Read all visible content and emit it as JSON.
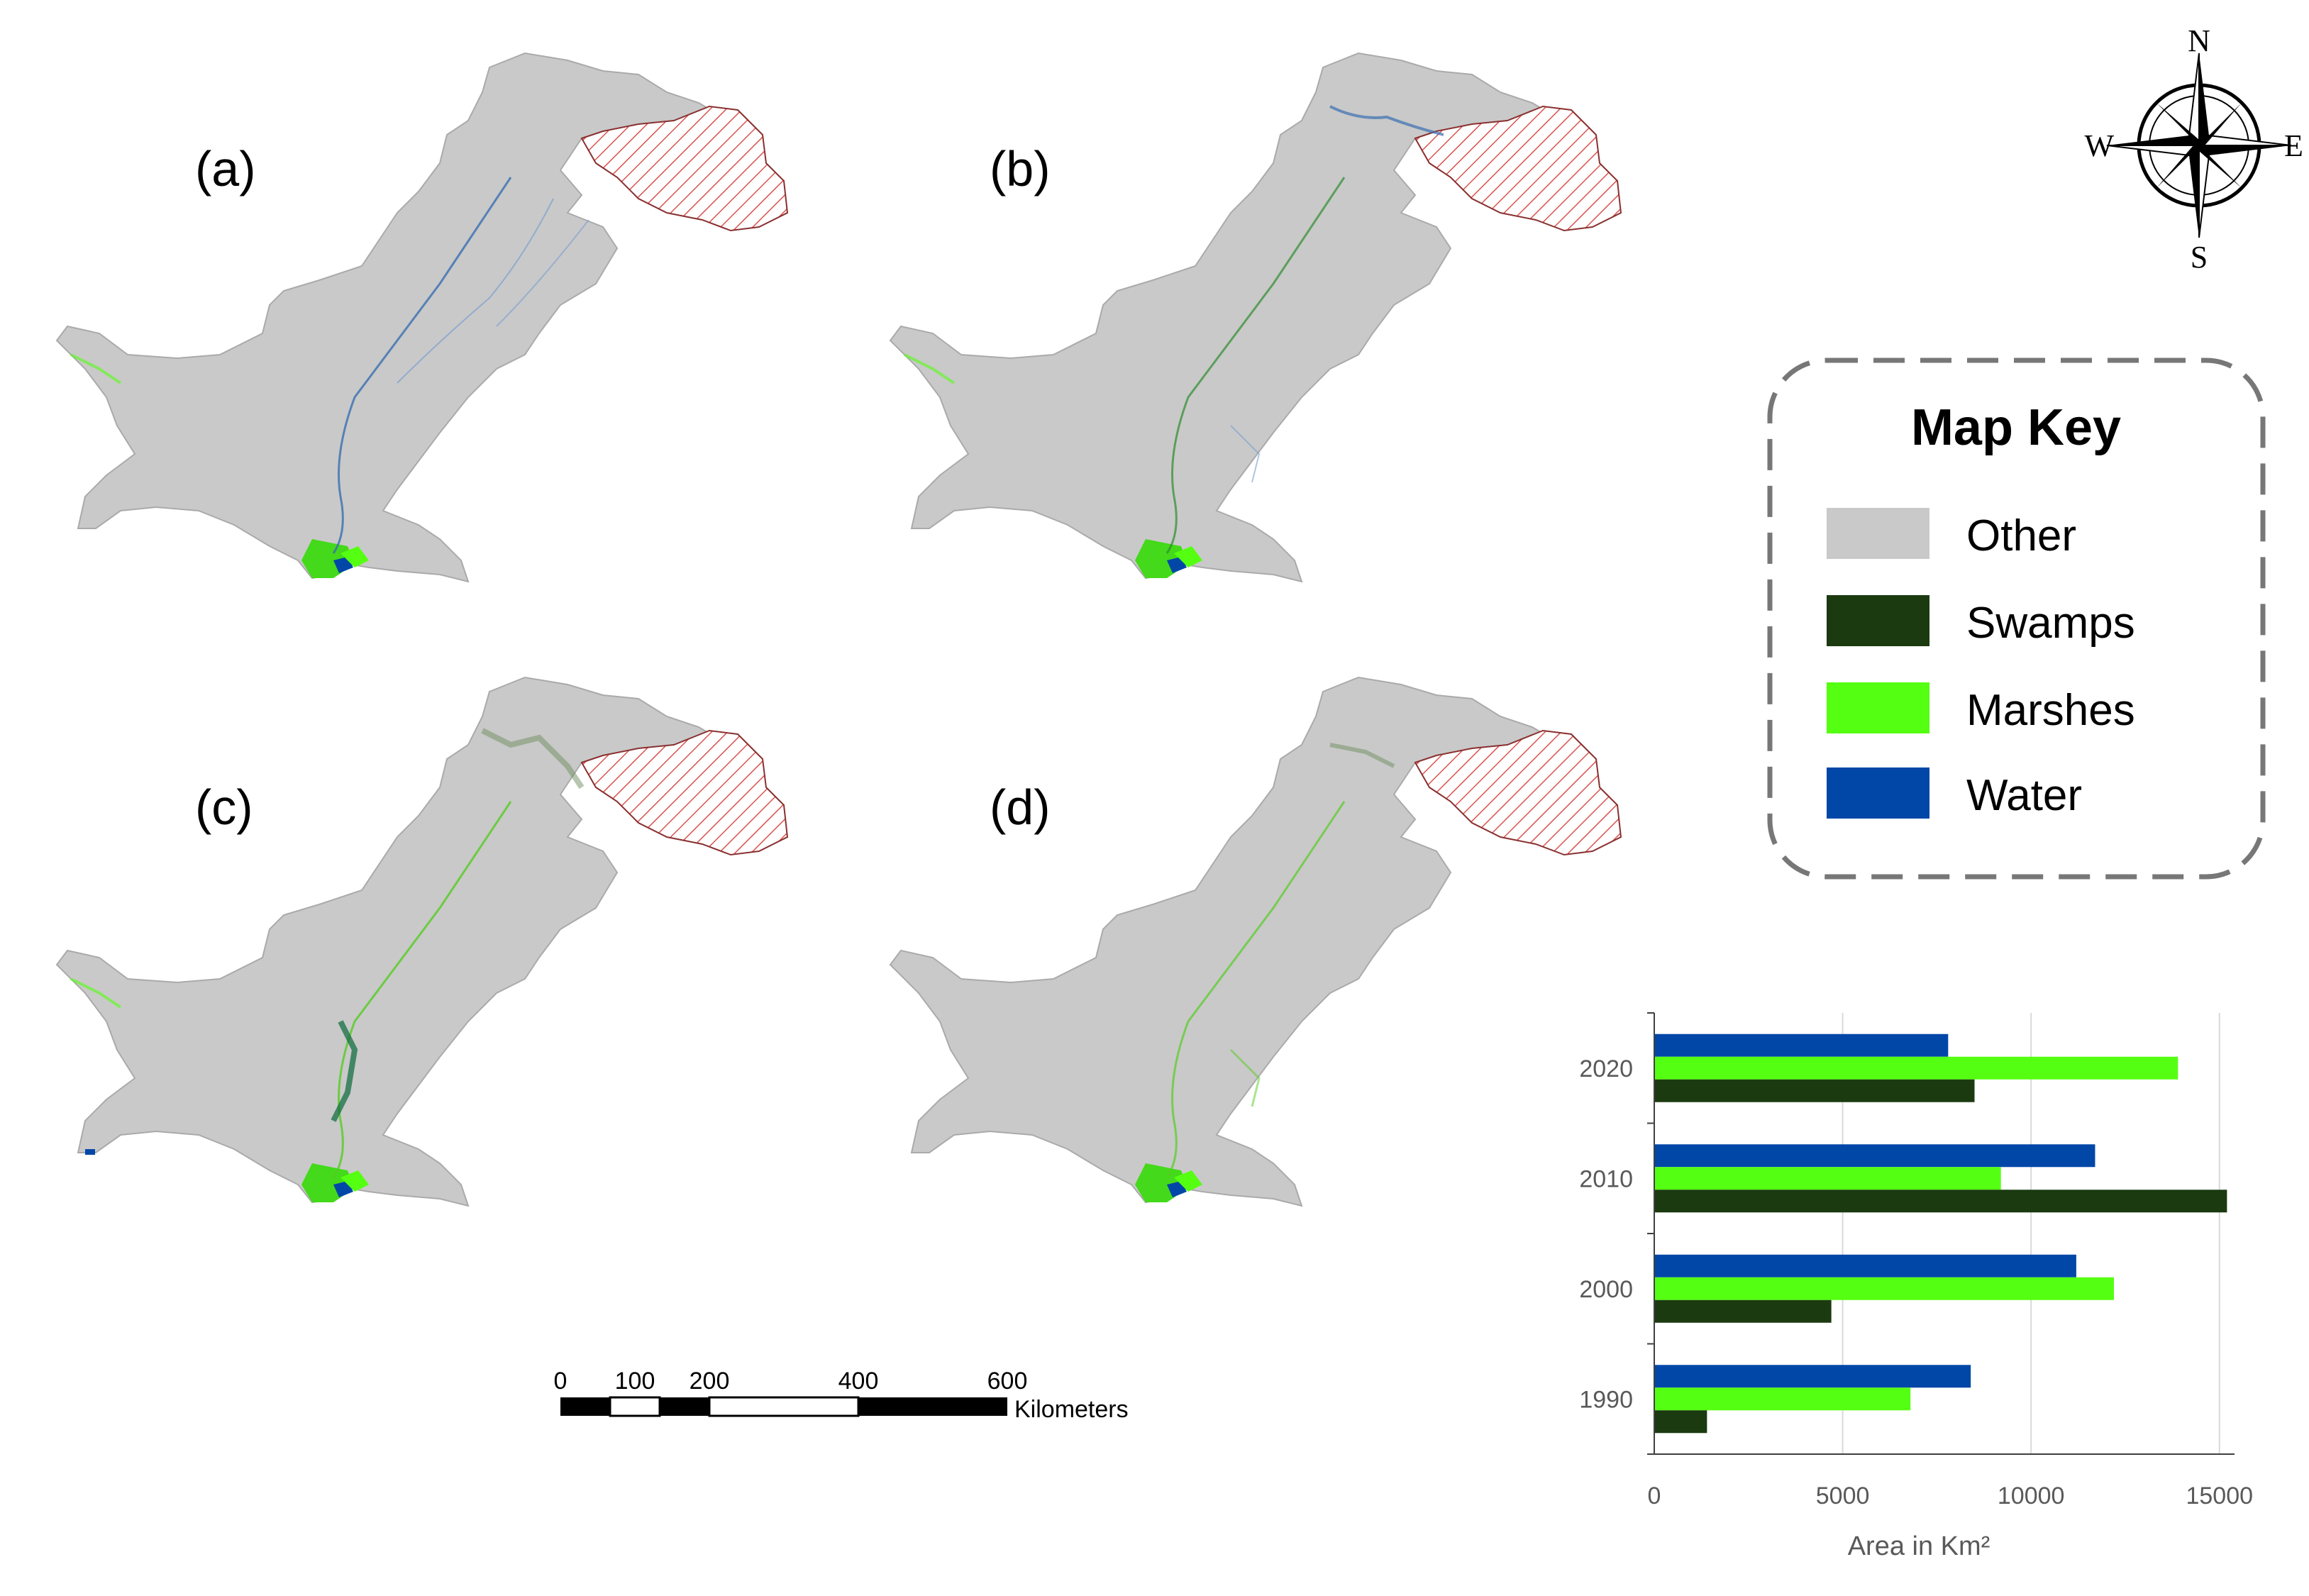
{
  "maps": {
    "panels": [
      {
        "label": "(a)"
      },
      {
        "label": "(b)"
      },
      {
        "label": "(c)"
      },
      {
        "label": "(d)"
      }
    ]
  },
  "compass": {
    "north": "N",
    "south": "S",
    "east": "E",
    "west": "W"
  },
  "scale_bar": {
    "ticks": [
      "0",
      "100",
      "200",
      "400",
      "600"
    ],
    "unit": "Kilometers"
  },
  "map_key": {
    "title": "Map Key",
    "items": [
      {
        "label": "Other",
        "color": "#c9c9c9"
      },
      {
        "label": "Swamps",
        "color": "#1b3a10"
      },
      {
        "label": "Marshes",
        "color": "#55ff11"
      },
      {
        "label": "Water",
        "color": "#0047a8"
      }
    ]
  },
  "chart_data": {
    "type": "bar",
    "orientation": "horizontal",
    "categories": [
      "1990",
      "2000",
      "2010",
      "2020"
    ],
    "series": [
      {
        "key": "water",
        "color": "#0047a8",
        "values": [
          8400,
          11200,
          11700,
          7800
        ]
      },
      {
        "key": "marshes",
        "color": "#55ff11",
        "values": [
          6800,
          12200,
          9200,
          13900
        ]
      },
      {
        "key": "swamps",
        "color": "#1b3a10",
        "values": [
          1400,
          4700,
          15200,
          8500
        ]
      }
    ],
    "x_ticks": [
      "0",
      "5000",
      "10000",
      "15000"
    ],
    "xlim": [
      0,
      15400
    ],
    "xlabel": "Area in Km²",
    "ylabel": "",
    "grid": true
  }
}
